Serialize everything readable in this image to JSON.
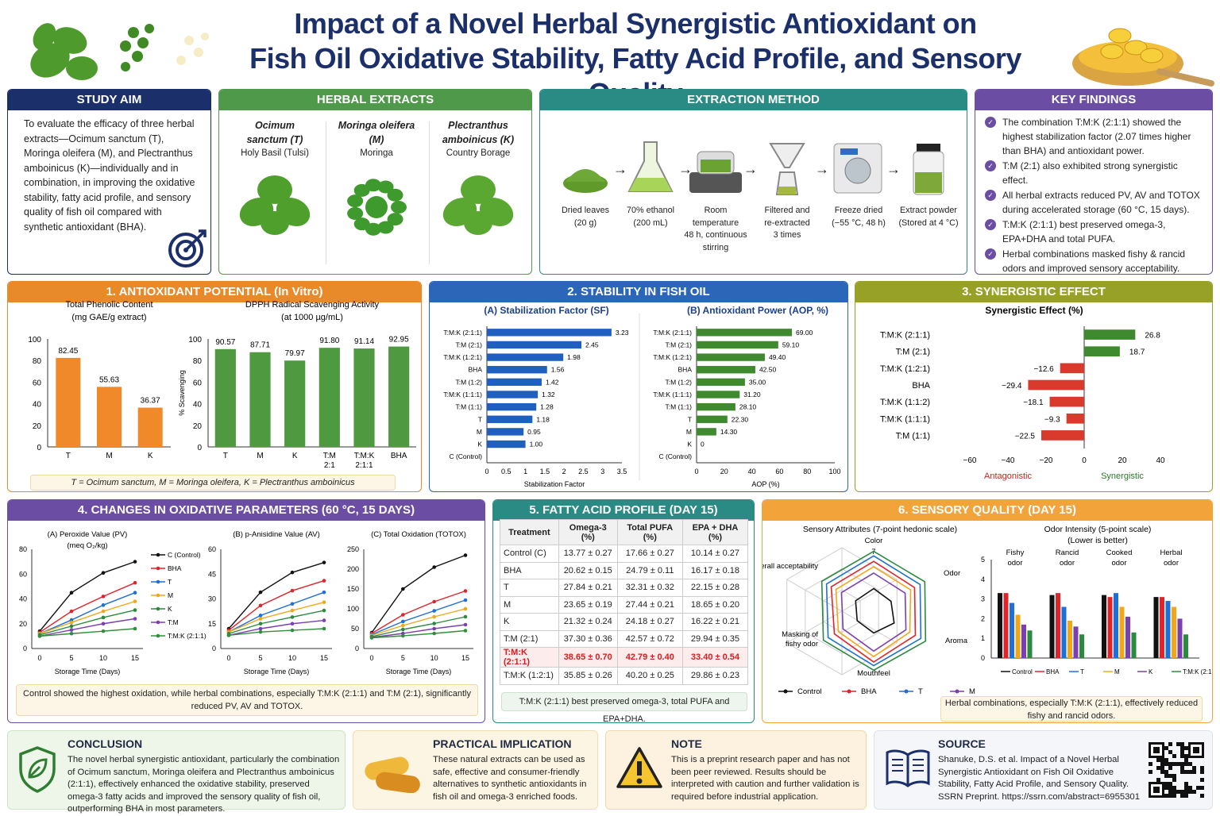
{
  "title_line1": "Impact of a Novel Herbal Synergistic Antioxidant on",
  "title_line2": "Fish Oil Oxidative Stability, Fatty Acid Profile, and Sensory Quality",
  "colors": {
    "navy": "#1b2f6b",
    "green": "#4f9a4a",
    "teal": "#2a8a84",
    "purple": "#6b4ea3",
    "orange": "#e8892a",
    "blue": "#2b66b8",
    "olive": "#98a127",
    "red": "#d93a2c"
  },
  "aim": {
    "header": "STUDY AIM",
    "text": "To evaluate the efficacy of three herbal extracts—Ocimum sanctum (T), Moringa oleifera (M), and Plectranthus amboinicus (K)—individually and in combination, in improving the oxidative stability, fatty acid profile, and sensory quality of fish oil compared with synthetic antioxidant (BHA)."
  },
  "herbs": {
    "header": "HERBAL EXTRACTS",
    "items": [
      {
        "latin": "Ocimum sanctum (T)",
        "common": "Holy Basil (Tulsi)"
      },
      {
        "latin": "Moringa oleifera (M)",
        "common": "Moringa"
      },
      {
        "latin": "Plectranthus amboinicus (K)",
        "common": "Country Borage"
      }
    ]
  },
  "extraction": {
    "header": "EXTRACTION METHOD",
    "steps": [
      {
        "l1": "Dried leaves",
        "l2": "(20 g)"
      },
      {
        "l1": "70% ethanol",
        "l2": "(200 mL)"
      },
      {
        "l1": "Room temperature",
        "l2": "48 h, continuous",
        "l3": "stirring"
      },
      {
        "l1": "Filtered and",
        "l2": "re-extracted",
        "l3": "3 times"
      },
      {
        "l1": "Freeze dried",
        "l2": "(−55 °C, 48 h)"
      },
      {
        "l1": "Extract powder",
        "l2": "(Stored at 4 °C)"
      }
    ]
  },
  "findings": {
    "header": "KEY FINDINGS",
    "items": [
      "The combination T:M:K (2:1:1) showed the highest stabilization factor (2.07 times higher than BHA) and antioxidant power.",
      "T:M (2:1) also exhibited strong synergistic effect.",
      "All herbal extracts reduced PV, AV and TOTOX during accelerated storage (60 °C, 15 days).",
      "T:M:K (2:1:1) best preserved omega-3, EPA+DHA and total PUFA.",
      "Herbal combinations masked fishy & rancid odors and improved sensory acceptability."
    ]
  },
  "p1": {
    "header": "1. ANTIOXIDANT POTENTIAL (In Vitro)",
    "note": "T = Ocimum sanctum, M = Moringa oleifera, K = Plectranthus amboinicus"
  },
  "p2": {
    "header": "2. STABILITY IN FISH OIL"
  },
  "p3": {
    "header": "3. SYNERGISTIC EFFECT"
  },
  "p4": {
    "header": "4. CHANGES IN OXIDATIVE PARAMETERS (60 °C, 15 DAYS)",
    "note": "Control showed the highest oxidation, while herbal combinations, especially T:M:K (2:1:1) and T:M (2:1), significantly reduced PV, AV and TOTOX."
  },
  "p5": {
    "header": "5. FATTY ACID PROFILE (DAY 15)",
    "note": "T:M:K (2:1:1) best preserved omega-3, total PUFA and EPA+DHA.",
    "columns": [
      "Treatment",
      "Omega-3 (%)",
      "Total PUFA (%)",
      "EPA + DHA (%)"
    ],
    "rows": [
      [
        "Control (C)",
        "13.77 ± 0.27",
        "17.66 ± 0.27",
        "10.14 ± 0.27"
      ],
      [
        "BHA",
        "20.62 ± 0.15",
        "24.79 ± 0.11",
        "16.17 ± 0.18"
      ],
      [
        "T",
        "27.84 ± 0.21",
        "32.31 ± 0.32",
        "22.15 ± 0.28"
      ],
      [
        "M",
        "23.65 ± 0.19",
        "27.44 ± 0.21",
        "18.65 ± 0.20"
      ],
      [
        "K",
        "21.32 ± 0.24",
        "24.18 ± 0.27",
        "16.22 ± 0.21"
      ],
      [
        "T:M (2:1)",
        "37.30 ± 0.36",
        "42.57 ± 0.72",
        "29.94 ± 0.35"
      ],
      [
        "T:M:K (2:1:1)",
        "38.65 ± 0.70",
        "42.79 ± 0.40",
        "33.40 ± 0.54"
      ],
      [
        "T:M:K (1:2:1)",
        "35.85 ± 0.26",
        "40.20 ± 0.25",
        "29.86 ± 0.23"
      ]
    ]
  },
  "p6": {
    "header": "6. SENSORY QUALITY (DAY 15)",
    "note": "Herbal combinations, especially T:M:K (2:1:1), effectively reduced fishy and rancid odors."
  },
  "conclusion": {
    "header": "CONCLUSION",
    "text": "The novel herbal synergistic antioxidant, particularly the combination of Ocimum sanctum, Moringa oleifera and Plectranthus amboinicus (2:1:1), effectively enhanced the oxidative stability, preserved omega-3 fatty acids and improved the sensory quality of fish oil, outperforming BHA in most parameters."
  },
  "implication": {
    "header": "PRACTICAL IMPLICATION",
    "text": "These natural extracts can be used as safe, effective and consumer-friendly alternatives to synthetic antioxidants in fish oil and omega-3 enriched foods."
  },
  "note": {
    "header": "NOTE",
    "text": "This is a preprint research paper and has not been peer reviewed. Results should be interpreted with caution and further validation is required before industrial application."
  },
  "source": {
    "header": "SOURCE",
    "text": "Shanuke, D.S. et al. Impact of a Novel Herbal Synergistic Antioxidant on Fish Oil Oxidative Stability, Fatty Acid Profile, and Sensory Quality. SSRN Preprint. https://ssrn.com/abstract=6955301"
  },
  "chart_data": [
    {
      "type": "bar",
      "title": "Total Phenolic Content",
      "subtitle": "(mg GAE/g extract)",
      "categories": [
        "T",
        "M",
        "K"
      ],
      "values": [
        82.45,
        55.63,
        36.37
      ],
      "ylim": [
        0,
        100
      ],
      "color": "#f0892a"
    },
    {
      "type": "bar",
      "title": "DPPH Radical Scavenging Activity",
      "subtitle": "(at 1000 µg/mL)",
      "ylabel": "% Scavenging",
      "categories": [
        "T",
        "M",
        "K",
        "T:M 2:1",
        "T:M:K 2:1:1",
        "BHA"
      ],
      "values": [
        90.57,
        87.71,
        79.97,
        91.8,
        91.14,
        92.95
      ],
      "ylim": [
        0,
        100
      ],
      "color": "#4f9a40"
    },
    {
      "type": "bar",
      "title": "(A) Stabilization Factor (SF)",
      "xlabel": "Stabilization Factor",
      "categories": [
        "T:M:K (2:1:1)",
        "T:M (2:1)",
        "T:M:K (1:2:1)",
        "BHA",
        "T:M (1:2)",
        "T:M:K (1:1:1)",
        "T:M (1:1)",
        "T",
        "M",
        "K",
        "C (Control)"
      ],
      "values": [
        3.23,
        2.45,
        1.98,
        1.56,
        1.42,
        1.32,
        1.28,
        1.18,
        0.95,
        1.0,
        null
      ],
      "xlim": [
        0,
        3.5
      ],
      "color": "#1f5fbf"
    },
    {
      "type": "bar",
      "title": "(B) Antioxidant Power (AOP, %)",
      "xlabel": "AOP (%)",
      "categories": [
        "T:M:K (2:1:1)",
        "T:M (2:1)",
        "T:M:K (1:2:1)",
        "BHA",
        "T:M (1:2)",
        "T:M:K (1:1:1)",
        "T:M (1:1)",
        "T",
        "M",
        "K",
        "C (Control)"
      ],
      "values": [
        69.0,
        59.1,
        49.4,
        42.5,
        35.0,
        31.2,
        28.1,
        22.3,
        14.3,
        0,
        null
      ],
      "xlim": [
        0,
        100
      ],
      "color": "#3f8a2e"
    },
    {
      "type": "bar",
      "title": "Synergistic Effect (%)",
      "categories": [
        "T:M:K (2:1:1)",
        "T:M (2:1)",
        "T:M:K (1:2:1)",
        "BHA",
        "T:M:K (1:1:2)",
        "T:M:K (1:1:1)",
        "T:M (1:1)"
      ],
      "values": [
        26.8,
        18.7,
        -12.6,
        -29.4,
        -18.1,
        -9.3,
        -22.5
      ],
      "xlim": [
        -60,
        40
      ],
      "annotations": [
        "Antagonistic",
        "Synergistic"
      ]
    },
    {
      "type": "line",
      "title": "(A) Peroxide Value (PV)",
      "ylabel": "(meq O₂/kg)",
      "xlabel": "Storage Time (Days)",
      "x": [
        0,
        5,
        10,
        15
      ],
      "ylim": [
        0,
        80
      ],
      "series": [
        {
          "name": "C (Control)",
          "values": [
            14,
            45,
            61,
            70
          ]
        },
        {
          "name": "BHA",
          "values": [
            13,
            30,
            42,
            53
          ]
        },
        {
          "name": "T",
          "values": [
            12,
            23,
            35,
            45
          ]
        },
        {
          "name": "M",
          "values": [
            12,
            21,
            30,
            38
          ]
        },
        {
          "name": "K",
          "values": [
            11,
            18,
            25,
            31
          ]
        },
        {
          "name": "T:M",
          "values": [
            10,
            15,
            20,
            24
          ]
        },
        {
          "name": "T:M:K (2:1:1)",
          "values": [
            10,
            12,
            14,
            16
          ]
        }
      ]
    },
    {
      "type": "line",
      "title": "(B) p-Anisidine Value (AV)",
      "xlabel": "Storage Time (Days)",
      "x": [
        0,
        5,
        10,
        15
      ],
      "ylim": [
        0,
        60
      ],
      "series": [
        {
          "name": "C (Control)",
          "values": [
            12,
            34,
            46,
            52
          ]
        },
        {
          "name": "BHA",
          "values": [
            11,
            26,
            35,
            41
          ]
        },
        {
          "name": "T",
          "values": [
            10,
            20,
            27,
            34
          ]
        },
        {
          "name": "M",
          "values": [
            10,
            18,
            23,
            28
          ]
        },
        {
          "name": "K",
          "values": [
            9,
            15,
            19,
            23
          ]
        },
        {
          "name": "T:M",
          "values": [
            8,
            12,
            15,
            17
          ]
        },
        {
          "name": "T:M:K (2:1:1)",
          "values": [
            8,
            10,
            11,
            12
          ]
        }
      ]
    },
    {
      "type": "line",
      "title": "(C) Total Oxidation (TOTOX)",
      "xlabel": "Storage Time (Days)",
      "x": [
        0,
        5,
        10,
        15
      ],
      "ylim": [
        0,
        250
      ],
      "series": [
        {
          "name": "C (Control)",
          "values": [
            40,
            150,
            205,
            235
          ]
        },
        {
          "name": "BHA",
          "values": [
            38,
            85,
            118,
            145
          ]
        },
        {
          "name": "T",
          "values": [
            35,
            68,
            95,
            122
          ]
        },
        {
          "name": "M",
          "values": [
            33,
            58,
            80,
            100
          ]
        },
        {
          "name": "K",
          "values": [
            30,
            48,
            63,
            80
          ]
        },
        {
          "name": "T:M",
          "values": [
            28,
            38,
            50,
            60
          ]
        },
        {
          "name": "T:M:K (2:1:1)",
          "values": [
            27,
            32,
            38,
            45
          ]
        }
      ]
    },
    {
      "type": "radar",
      "title": "Sensory Attributes (7-point hedonic scale)",
      "axes": [
        "Color",
        "Odor",
        "Aroma",
        "Mouthfeel",
        "Masking of fishy odor",
        "Overall acceptability"
      ],
      "rmax": 7,
      "series": [
        {
          "name": "Control",
          "values": [
            2.5,
            2.2,
            2.6,
            2.4,
            2.1,
            2.3
          ]
        },
        {
          "name": "BHA",
          "values": [
            5.5,
            5.2,
            5.3,
            5.6,
            5.0,
            5.4
          ]
        },
        {
          "name": "T",
          "values": [
            6.1,
            5.9,
            6.0,
            6.0,
            5.8,
            6.0
          ]
        },
        {
          "name": "M",
          "values": [
            4.9,
            4.7,
            4.6,
            5.0,
            4.5,
            4.8
          ]
        },
        {
          "name": "K",
          "values": [
            4.2,
            4.0,
            4.1,
            4.4,
            3.9,
            4.1
          ]
        },
        {
          "name": "T:M:K (2:1:1)",
          "values": [
            6.6,
            6.5,
            6.6,
            6.5,
            6.4,
            6.6
          ]
        }
      ]
    },
    {
      "type": "bar",
      "title": "Odor Intensity (5-point scale)",
      "subtitle": "(Lower is better)",
      "categories": [
        "Fishy odor",
        "Rancid odor",
        "Cooked odor",
        "Herbal odor"
      ],
      "ylim": [
        0,
        5
      ],
      "series": [
        {
          "name": "Control",
          "values": [
            3.3,
            3.2,
            3.2,
            3.1
          ]
        },
        {
          "name": "BHA",
          "values": [
            3.3,
            3.3,
            3.1,
            3.1
          ]
        },
        {
          "name": "T",
          "values": [
            2.8,
            2.6,
            3.3,
            2.9
          ]
        },
        {
          "name": "M",
          "values": [
            2.2,
            1.9,
            2.6,
            2.6
          ]
        },
        {
          "name": "K",
          "values": [
            1.7,
            1.6,
            2.1,
            2.0
          ]
        },
        {
          "name": "T:M:K (2:1:1)",
          "values": [
            1.4,
            1.2,
            1.3,
            1.2
          ]
        }
      ]
    }
  ]
}
